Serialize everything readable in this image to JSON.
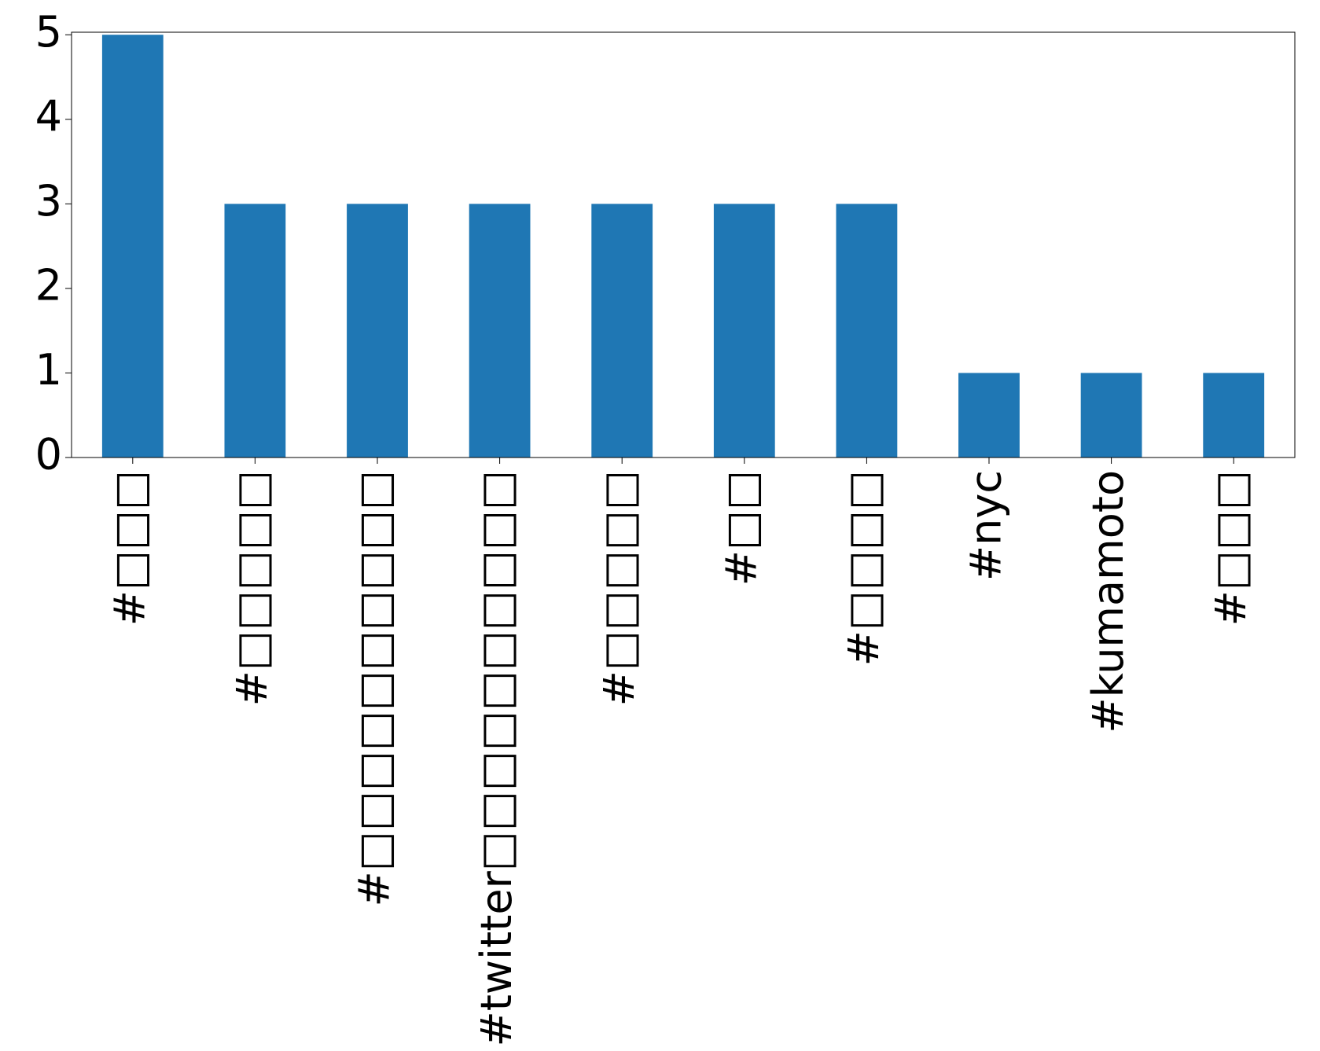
{
  "chart_data": {
    "type": "bar",
    "categories": [
      "#□□□",
      "#□□□□□",
      "#□□□□□□□□□□",
      "#twitter□□□□□□□□□□",
      "#□□□□□",
      "#□□",
      "#□□□□",
      "#nyc",
      "#kumamoto",
      "#□□□"
    ],
    "values": [
      5,
      3,
      3,
      3,
      3,
      3,
      3,
      1,
      1,
      1
    ],
    "color": "#1f77b4",
    "ylim": [
      0,
      5.03
    ],
    "yticks": [
      0,
      1,
      2,
      3,
      4,
      5
    ],
    "grid": false
  }
}
